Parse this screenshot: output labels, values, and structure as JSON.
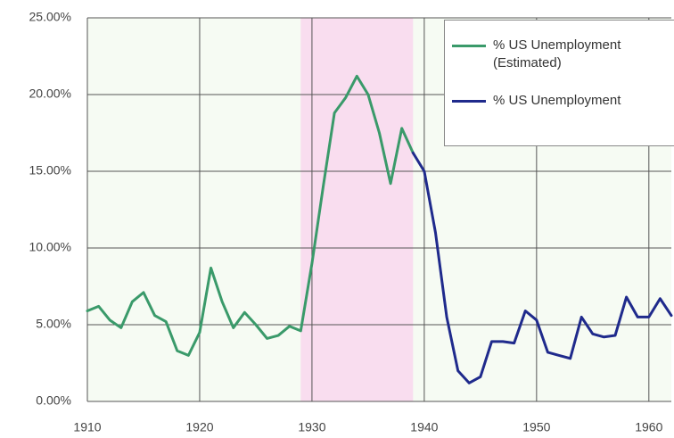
{
  "chart_data": {
    "type": "line",
    "x": [
      1910,
      1911,
      1912,
      1913,
      1914,
      1915,
      1916,
      1917,
      1918,
      1919,
      1920,
      1921,
      1922,
      1923,
      1924,
      1925,
      1926,
      1927,
      1928,
      1929,
      1930,
      1931,
      1932,
      1933,
      1934,
      1935,
      1936,
      1937,
      1938,
      1939,
      1940,
      1941,
      1942,
      1943,
      1944,
      1945,
      1946,
      1947,
      1948,
      1949,
      1950,
      1951,
      1952,
      1953,
      1954,
      1955,
      1956,
      1957,
      1958,
      1959,
      1960,
      1961,
      1962
    ],
    "series": [
      {
        "name": "% US Unemployment (Estimated)",
        "color": "#3a9a6a",
        "values": [
          5.9,
          6.2,
          5.3,
          4.8,
          6.5,
          7.1,
          5.6,
          5.2,
          3.3,
          3.0,
          4.5,
          8.7,
          6.5,
          4.8,
          5.8,
          5.0,
          4.1,
          4.3,
          4.9,
          4.6,
          9.0,
          14.0,
          18.8,
          19.8,
          21.2,
          20.0,
          17.5,
          14.2,
          17.8,
          16.2,
          null,
          null,
          null,
          null,
          null,
          null,
          null,
          null,
          null,
          null,
          null,
          null,
          null,
          null,
          null,
          null,
          null,
          null,
          null,
          null,
          null,
          null,
          null
        ]
      },
      {
        "name": "% US Unemployment",
        "color": "#1f2a8c",
        "values": [
          null,
          null,
          null,
          null,
          null,
          null,
          null,
          null,
          null,
          null,
          null,
          null,
          null,
          null,
          null,
          null,
          null,
          null,
          null,
          null,
          null,
          null,
          null,
          null,
          null,
          null,
          null,
          null,
          null,
          16.2,
          15.0,
          11.0,
          5.5,
          2.0,
          1.2,
          1.6,
          3.9,
          3.9,
          3.8,
          5.9,
          5.3,
          3.2,
          3.0,
          2.8,
          5.5,
          4.4,
          4.2,
          4.3,
          6.8,
          5.5,
          5.5,
          6.7,
          5.6
        ]
      }
    ],
    "highlight_range": [
      1929,
      1939
    ],
    "highlight_color": "#f9ddef",
    "xlim": [
      1910,
      1962
    ],
    "xticks": [
      1910,
      1920,
      1930,
      1940,
      1950,
      1960
    ],
    "ylim": [
      0,
      25
    ],
    "yticks": [
      {
        "value": 0,
        "label": "0.00%"
      },
      {
        "value": 5,
        "label": "5.00%"
      },
      {
        "value": 10,
        "label": "10.00%"
      },
      {
        "value": 15,
        "label": "15.00%"
      },
      {
        "value": 20,
        "label": "20.00%"
      },
      {
        "value": 25,
        "label": "25.00%"
      }
    ],
    "grid": true
  }
}
